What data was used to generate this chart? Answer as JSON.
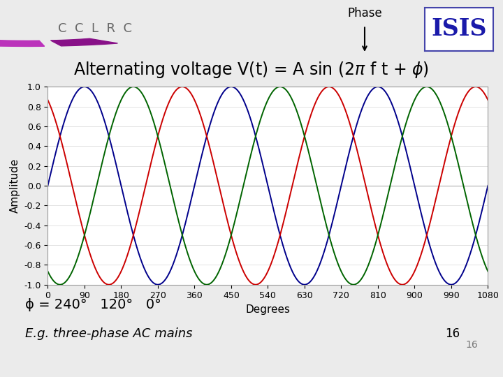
{
  "title": "Alternating voltage V(t) = A sin (2π f t + ϕ)",
  "xlabel": "Degrees",
  "ylabel": "Amplitude",
  "xlim": [
    0,
    1080
  ],
  "ylim": [
    -1.0,
    1.0
  ],
  "xticks": [
    0,
    90,
    180,
    270,
    360,
    450,
    540,
    630,
    720,
    810,
    900,
    990,
    1080
  ],
  "yticks": [
    -1.0,
    -0.8,
    -0.6,
    -0.4,
    -0.2,
    0.0,
    0.2,
    0.4,
    0.6,
    0.8,
    1.0
  ],
  "phase_blue": 0,
  "phase_red": 120,
  "phase_green": 240,
  "line_color_blue": "#00008B",
  "line_color_red": "#CC0000",
  "line_color_green": "#006400",
  "bg_color": "#ebebeb",
  "header_bg": "#d8d8d8",
  "plot_bg": "#ffffff",
  "phi_label": "ϕ = 240°   120°   0°",
  "eg_label": "E.g. three-phase AC mains",
  "phase_text": "Phase",
  "isis_text": "ISIS",
  "cclrc_text": "CCLRC",
  "slide_num": "16",
  "title_fontsize": 17,
  "axis_fontsize": 9,
  "label_fontsize": 11,
  "footer_bar_color": "#8B0057"
}
